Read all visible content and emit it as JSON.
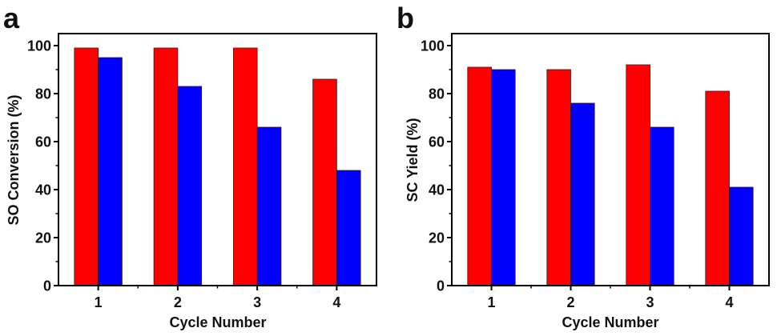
{
  "chart_data": [
    {
      "panel_label": "a",
      "type": "bar",
      "title": "",
      "xlabel": "Cycle Number",
      "ylabel": "SO Conversion (%)",
      "categories": [
        "1",
        "2",
        "3",
        "4"
      ],
      "x": [
        1,
        2,
        3,
        4
      ],
      "xlim": [
        0.5,
        4.5
      ],
      "ylim": [
        0,
        105
      ],
      "yticks": [
        0,
        20,
        40,
        60,
        80,
        100
      ],
      "yminor_ticks": [
        10,
        30,
        50,
        70,
        90
      ],
      "xminor_ticks": [
        1.5,
        2.5,
        3.5
      ],
      "grid": false,
      "legend": "none",
      "series": [
        {
          "name": "series-red",
          "color": "#ff0000",
          "values": [
            99,
            99,
            99,
            86
          ]
        },
        {
          "name": "series-blue",
          "color": "#0000ff",
          "values": [
            95,
            83,
            66,
            48
          ]
        }
      ]
    },
    {
      "panel_label": "b",
      "type": "bar",
      "title": "",
      "xlabel": "Cycle Number",
      "ylabel": "SC Yield (%)",
      "categories": [
        "1",
        "2",
        "3",
        "4"
      ],
      "x": [
        1,
        2,
        3,
        4
      ],
      "xlim": [
        0.5,
        4.5
      ],
      "ylim": [
        0,
        105
      ],
      "yticks": [
        0,
        20,
        40,
        60,
        80,
        100
      ],
      "yminor_ticks": [
        10,
        30,
        50,
        70,
        90
      ],
      "xminor_ticks": [
        1.5,
        2.5,
        3.5
      ],
      "grid": false,
      "legend": "none",
      "series": [
        {
          "name": "series-red",
          "color": "#ff0000",
          "values": [
            91,
            90,
            92,
            81
          ]
        },
        {
          "name": "series-blue",
          "color": "#0000ff",
          "values": [
            90,
            76,
            66,
            41
          ]
        }
      ]
    }
  ]
}
